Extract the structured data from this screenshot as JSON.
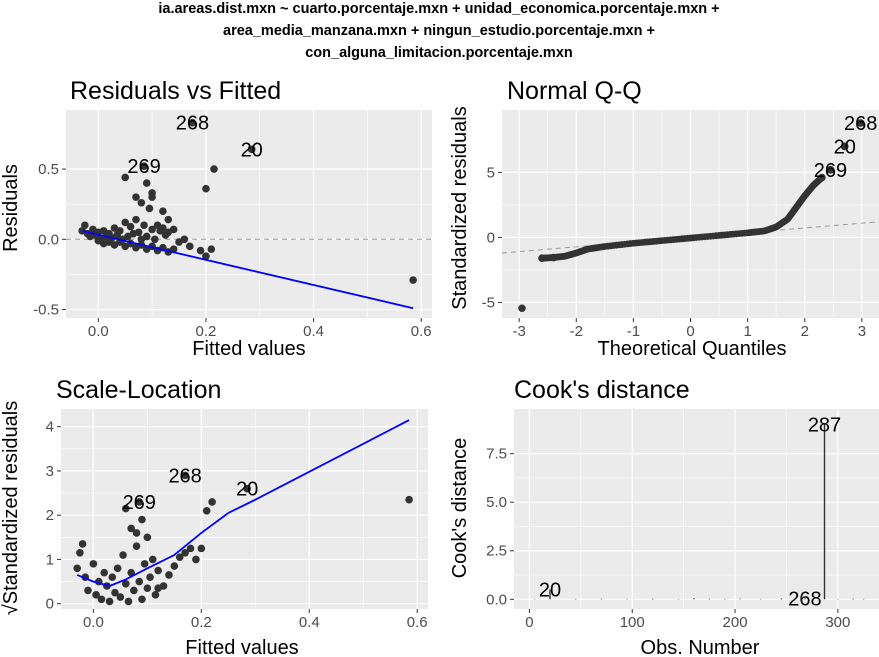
{
  "figure": {
    "title_lines": [
      "ia.areas.dist.mxn ~ cuarto.porcentaje.mxn + unidad_economica.porcentaje.mxn +",
      "area_media_manzana.mxn + ningun_estudio.porcentaje.mxn +",
      "con_alguna_limitacion.porcentaje.mxn"
    ]
  },
  "colors": {
    "panel_bg": "#ebebeb",
    "grid": "#ffffff",
    "point": "#333333",
    "smooth": "#0000ff",
    "reference": "#999999"
  },
  "chart_data": [
    {
      "type": "scatter",
      "title": "Residuals vs Fitted",
      "xlabel": "Fitted values",
      "ylabel": "Residuals",
      "xlim": [
        -0.06,
        0.62
      ],
      "ylim": [
        -0.56,
        0.92
      ],
      "xticks": [
        0.0,
        0.2,
        0.4,
        0.6
      ],
      "xtick_labels": [
        "0.0",
        "0.2",
        "0.4",
        "0.6"
      ],
      "yticks": [
        -0.5,
        0.0,
        0.5
      ],
      "ytick_labels": [
        "-0.5",
        "0.0",
        "0.5"
      ],
      "grid": true,
      "ref_line": {
        "kind": "hline",
        "y": 0,
        "style": "dashed"
      },
      "points": [
        {
          "x": -0.03,
          "y": 0.06
        },
        {
          "x": -0.025,
          "y": 0.1
        },
        {
          "x": -0.02,
          "y": 0.04
        },
        {
          "x": -0.015,
          "y": 0.02
        },
        {
          "x": -0.01,
          "y": 0.07
        },
        {
          "x": -0.005,
          "y": 0.03
        },
        {
          "x": 0.0,
          "y": 0.05
        },
        {
          "x": 0.005,
          "y": 0.0
        },
        {
          "x": 0.01,
          "y": 0.06
        },
        {
          "x": 0.015,
          "y": 0.02
        },
        {
          "x": 0.02,
          "y": 0.04
        },
        {
          "x": 0.025,
          "y": 0.01
        },
        {
          "x": 0.03,
          "y": 0.08
        },
        {
          "x": 0.035,
          "y": 0.03
        },
        {
          "x": 0.04,
          "y": 0.06
        },
        {
          "x": 0.045,
          "y": 0.0
        },
        {
          "x": 0.05,
          "y": 0.12
        },
        {
          "x": 0.055,
          "y": 0.02
        },
        {
          "x": 0.06,
          "y": 0.09
        },
        {
          "x": 0.065,
          "y": 0.04
        },
        {
          "x": 0.07,
          "y": 0.14
        },
        {
          "x": 0.075,
          "y": 0.05
        },
        {
          "x": 0.08,
          "y": 0.0
        },
        {
          "x": 0.085,
          "y": 0.1
        },
        {
          "x": 0.09,
          "y": 0.02
        },
        {
          "x": 0.095,
          "y": 0.22
        },
        {
          "x": 0.1,
          "y": 0.07
        },
        {
          "x": 0.105,
          "y": 0.0
        },
        {
          "x": 0.11,
          "y": 0.1
        },
        {
          "x": 0.115,
          "y": 0.06
        },
        {
          "x": 0.12,
          "y": 0.08
        },
        {
          "x": 0.125,
          "y": 0.03
        },
        {
          "x": 0.13,
          "y": 0.05
        },
        {
          "x": 0.14,
          "y": 0.07
        },
        {
          "x": 0.15,
          "y": -0.02
        },
        {
          "x": 0.16,
          "y": 0.0
        },
        {
          "x": 0.17,
          "y": -0.05
        },
        {
          "x": 0.19,
          "y": -0.08
        },
        {
          "x": 0.2,
          "y": -0.12
        },
        {
          "x": 0.21,
          "y": -0.07
        },
        {
          "x": 0.0,
          "y": -0.01
        },
        {
          "x": 0.01,
          "y": -0.03
        },
        {
          "x": 0.02,
          "y": -0.02
        },
        {
          "x": 0.03,
          "y": -0.04
        },
        {
          "x": 0.04,
          "y": -0.02
        },
        {
          "x": 0.05,
          "y": -0.05
        },
        {
          "x": 0.06,
          "y": -0.03
        },
        {
          "x": 0.07,
          "y": -0.06
        },
        {
          "x": 0.08,
          "y": -0.04
        },
        {
          "x": 0.09,
          "y": -0.07
        },
        {
          "x": 0.1,
          "y": -0.05
        },
        {
          "x": 0.11,
          "y": -0.08
        },
        {
          "x": 0.12,
          "y": -0.06
        },
        {
          "x": 0.13,
          "y": -0.09
        },
        {
          "x": 0.14,
          "y": -0.07
        },
        {
          "x": 0.05,
          "y": 0.44
        },
        {
          "x": 0.07,
          "y": 0.3
        },
        {
          "x": 0.08,
          "y": 0.26
        },
        {
          "x": 0.09,
          "y": 0.4
        },
        {
          "x": 0.1,
          "y": 0.33
        },
        {
          "x": 0.1,
          "y": 0.3
        },
        {
          "x": 0.12,
          "y": 0.2
        },
        {
          "x": 0.13,
          "y": 0.14
        },
        {
          "x": 0.2,
          "y": 0.36
        },
        {
          "x": 0.215,
          "y": 0.5
        },
        {
          "x": 0.585,
          "y": -0.29
        }
      ],
      "labeled_points": [
        {
          "label": "268",
          "x": 0.175,
          "y": 0.83
        },
        {
          "label": "20",
          "x": 0.285,
          "y": 0.64
        },
        {
          "label": "269",
          "x": 0.085,
          "y": 0.52
        }
      ],
      "smooth_line": [
        {
          "x": -0.03,
          "y": 0.06
        },
        {
          "x": 0.585,
          "y": -0.49
        }
      ]
    },
    {
      "type": "scatter",
      "title": "Normal Q-Q",
      "xlabel": "Theoretical Quantiles",
      "ylabel": "Standardized residuals",
      "xlim": [
        -3.3,
        3.3
      ],
      "ylim": [
        -6.2,
        9.8
      ],
      "xticks": [
        -3,
        -2,
        -1,
        0,
        1,
        2,
        3
      ],
      "xtick_labels": [
        "-3",
        "-2",
        "-1",
        "0",
        "1",
        "2",
        "3"
      ],
      "yticks": [
        -5,
        0,
        5
      ],
      "ytick_labels": [
        "-5",
        "0",
        "5"
      ],
      "grid": true,
      "ref_line": {
        "kind": "line",
        "from": {
          "x": -3.3,
          "y": -1.2
        },
        "to": {
          "x": 3.3,
          "y": 1.2
        },
        "style": "dashed"
      },
      "quantile_curve": [
        {
          "x": -2.6,
          "y": -1.6
        },
        {
          "x": -2.4,
          "y": -1.55
        },
        {
          "x": -2.2,
          "y": -1.45
        },
        {
          "x": -2.0,
          "y": -1.2
        },
        {
          "x": -1.8,
          "y": -0.9
        },
        {
          "x": -1.5,
          "y": -0.7
        },
        {
          "x": -1.0,
          "y": -0.45
        },
        {
          "x": -0.5,
          "y": -0.25
        },
        {
          "x": 0.0,
          "y": -0.05
        },
        {
          "x": 0.5,
          "y": 0.15
        },
        {
          "x": 1.0,
          "y": 0.35
        },
        {
          "x": 1.3,
          "y": 0.5
        },
        {
          "x": 1.5,
          "y": 0.8
        },
        {
          "x": 1.7,
          "y": 1.4
        },
        {
          "x": 1.85,
          "y": 2.3
        },
        {
          "x": 2.0,
          "y": 3.2
        },
        {
          "x": 2.15,
          "y": 4.0
        },
        {
          "x": 2.3,
          "y": 4.6
        }
      ],
      "points": [
        {
          "x": -2.95,
          "y": -5.45
        },
        {
          "x": -2.6,
          "y": -1.6
        },
        {
          "x": -2.4,
          "y": -1.55
        },
        {
          "x": 2.3,
          "y": 4.6
        },
        {
          "x": 2.45,
          "y": 5.2
        },
        {
          "x": 2.7,
          "y": 7.0
        },
        {
          "x": 2.98,
          "y": 8.8
        }
      ],
      "labeled_points": [
        {
          "label": "268",
          "x": 2.98,
          "y": 8.8
        },
        {
          "label": "20",
          "x": 2.7,
          "y": 7.0
        },
        {
          "label": "269",
          "x": 2.45,
          "y": 5.2
        }
      ]
    },
    {
      "type": "scatter",
      "title": "Scale-Location",
      "xlabel": "Fitted values",
      "ylabel": "Standardized residuals",
      "ylabel_prefix": "√",
      "xlim": [
        -0.06,
        0.62
      ],
      "ylim": [
        -0.12,
        4.4
      ],
      "xticks": [
        0.0,
        0.2,
        0.4,
        0.6
      ],
      "xtick_labels": [
        "0.0",
        "0.2",
        "0.4",
        "0.6"
      ],
      "yticks": [
        0,
        1,
        2,
        3,
        4
      ],
      "ytick_labels": [
        "0",
        "1",
        "2",
        "3",
        "4"
      ],
      "grid": true,
      "points": [
        {
          "x": -0.03,
          "y": 0.8
        },
        {
          "x": -0.025,
          "y": 1.15
        },
        {
          "x": -0.02,
          "y": 1.35
        },
        {
          "x": -0.015,
          "y": 0.6
        },
        {
          "x": -0.01,
          "y": 0.3
        },
        {
          "x": 0.0,
          "y": 0.9
        },
        {
          "x": 0.005,
          "y": 0.2
        },
        {
          "x": 0.01,
          "y": 0.5
        },
        {
          "x": 0.015,
          "y": 0.1
        },
        {
          "x": 0.02,
          "y": 0.7
        },
        {
          "x": 0.025,
          "y": 0.4
        },
        {
          "x": 0.03,
          "y": 0.05
        },
        {
          "x": 0.035,
          "y": 0.6
        },
        {
          "x": 0.04,
          "y": 0.25
        },
        {
          "x": 0.045,
          "y": 0.8
        },
        {
          "x": 0.05,
          "y": 0.15
        },
        {
          "x": 0.055,
          "y": 1.1
        },
        {
          "x": 0.06,
          "y": 0.45
        },
        {
          "x": 0.065,
          "y": 0.05
        },
        {
          "x": 0.07,
          "y": 0.7
        },
        {
          "x": 0.075,
          "y": 0.3
        },
        {
          "x": 0.08,
          "y": 1.3
        },
        {
          "x": 0.085,
          "y": 0.5
        },
        {
          "x": 0.09,
          "y": 0.1
        },
        {
          "x": 0.095,
          "y": 0.9
        },
        {
          "x": 0.1,
          "y": 0.35
        },
        {
          "x": 0.105,
          "y": 0.6
        },
        {
          "x": 0.11,
          "y": 1.0
        },
        {
          "x": 0.115,
          "y": 0.2
        },
        {
          "x": 0.12,
          "y": 0.75
        },
        {
          "x": 0.13,
          "y": 0.4
        },
        {
          "x": 0.14,
          "y": 0.65
        },
        {
          "x": 0.15,
          "y": 0.85
        },
        {
          "x": 0.16,
          "y": 1.05
        },
        {
          "x": 0.17,
          "y": 1.15
        },
        {
          "x": 0.18,
          "y": 1.25
        },
        {
          "x": 0.19,
          "y": 1.0
        },
        {
          "x": 0.2,
          "y": 1.25
        },
        {
          "x": 0.21,
          "y": 2.1
        },
        {
          "x": 0.22,
          "y": 2.3
        },
        {
          "x": 0.06,
          "y": 2.15
        },
        {
          "x": 0.07,
          "y": 1.7
        },
        {
          "x": 0.08,
          "y": 1.6
        },
        {
          "x": 0.09,
          "y": 1.9
        },
        {
          "x": 0.1,
          "y": 1.5
        },
        {
          "x": 0.12,
          "y": 0.35
        },
        {
          "x": 0.585,
          "y": 2.35
        }
      ],
      "labeled_points": [
        {
          "label": "268",
          "x": 0.17,
          "y": 2.9
        },
        {
          "label": "20",
          "x": 0.285,
          "y": 2.6
        },
        {
          "label": "269",
          "x": 0.085,
          "y": 2.3
        }
      ],
      "smooth_line": [
        {
          "x": -0.03,
          "y": 0.65
        },
        {
          "x": 0.0,
          "y": 0.5
        },
        {
          "x": 0.03,
          "y": 0.4
        },
        {
          "x": 0.06,
          "y": 0.55
        },
        {
          "x": 0.1,
          "y": 0.8
        },
        {
          "x": 0.15,
          "y": 1.1
        },
        {
          "x": 0.2,
          "y": 1.6
        },
        {
          "x": 0.25,
          "y": 2.05
        },
        {
          "x": 0.3,
          "y": 2.35
        },
        {
          "x": 0.585,
          "y": 4.15
        }
      ]
    },
    {
      "type": "bar",
      "title": "Cook's distance",
      "xlabel": "Obs. Number",
      "ylabel": "Cook's distance",
      "xlim": [
        -15,
        340
      ],
      "ylim": [
        -0.5,
        9.8
      ],
      "xticks": [
        0,
        100,
        200,
        300
      ],
      "xtick_labels": [
        "0",
        "100",
        "200",
        "300"
      ],
      "yticks": [
        0.0,
        2.5,
        5.0,
        7.5
      ],
      "ytick_labels": [
        "0.0",
        "2.5",
        "5.0",
        "7.5"
      ],
      "grid": true,
      "bars": [
        {
          "obs": 5,
          "value": 0.02
        },
        {
          "obs": 20,
          "value": 0.5
        },
        {
          "obs": 45,
          "value": 0.02
        },
        {
          "obs": 70,
          "value": 0.03
        },
        {
          "obs": 95,
          "value": 0.02
        },
        {
          "obs": 120,
          "value": 0.03
        },
        {
          "obs": 145,
          "value": 0.02
        },
        {
          "obs": 160,
          "value": 0.05
        },
        {
          "obs": 175,
          "value": 0.03
        },
        {
          "obs": 190,
          "value": 0.02
        },
        {
          "obs": 205,
          "value": 0.03
        },
        {
          "obs": 225,
          "value": 0.02
        },
        {
          "obs": 245,
          "value": 0.04
        },
        {
          "obs": 268,
          "value": 0.05
        },
        {
          "obs": 287,
          "value": 9.0
        },
        {
          "obs": 300,
          "value": 0.02
        },
        {
          "obs": 315,
          "value": 0.03
        },
        {
          "obs": 325,
          "value": 0.02
        }
      ],
      "labeled_points": [
        {
          "label": "287",
          "x": 287,
          "y": 9.0
        },
        {
          "label": "20",
          "x": 20,
          "y": 0.5
        },
        {
          "label": "268",
          "x": 268,
          "y": 0.05
        }
      ]
    }
  ]
}
